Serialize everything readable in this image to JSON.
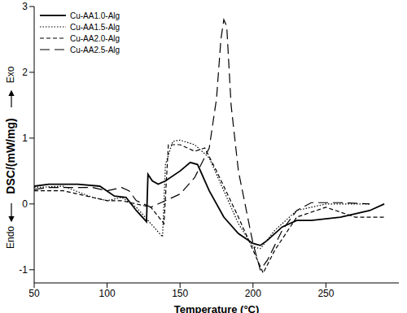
{
  "chart_data": {
    "type": "line",
    "xlabel": "Temperature (°C)",
    "ylabel": "DSC/(mW/mg)",
    "annotations": [
      "Exo",
      "Endo"
    ],
    "xlim": [
      50,
      300
    ],
    "ylim": [
      -1.2,
      3
    ],
    "xticks": [
      50,
      100,
      150,
      200,
      250
    ],
    "yticks": [
      -1,
      0,
      1,
      2,
      3
    ],
    "grid": false,
    "legend": "upper left",
    "series": [
      {
        "name": "Cu-AA1.0-Alg",
        "color": "#000000",
        "line_style": "solid",
        "x": [
          50,
          60,
          80,
          95,
          105,
          113,
          120,
          127,
          128,
          131,
          135,
          140,
          150,
          157,
          162,
          170,
          180,
          190,
          200,
          205,
          210,
          220,
          230,
          240,
          260,
          280,
          290
        ],
        "values": [
          0.27,
          0.3,
          0.3,
          0.27,
          0.12,
          0.1,
          -0.1,
          -0.27,
          0.45,
          0.35,
          0.3,
          0.35,
          0.5,
          0.63,
          0.6,
          0.2,
          -0.2,
          -0.45,
          -0.6,
          -0.63,
          -0.55,
          -0.35,
          -0.25,
          -0.25,
          -0.2,
          -0.1,
          0
        ]
      },
      {
        "name": "Cu-AA1.5-Alg",
        "color": "#000000",
        "line_style": "dotted",
        "x": [
          50,
          70,
          90,
          100,
          110,
          120,
          130,
          138,
          140,
          145,
          150,
          160,
          170,
          180,
          190,
          200,
          205,
          215,
          230,
          250,
          270,
          280
        ],
        "values": [
          0.25,
          0.27,
          0.1,
          0.05,
          0.1,
          -0.05,
          -0.3,
          -0.5,
          0.6,
          0.95,
          0.97,
          0.9,
          0.7,
          0.2,
          -0.3,
          -0.65,
          -0.68,
          -0.4,
          -0.1,
          0,
          0,
          0
        ]
      },
      {
        "name": "Cu-AA2.0-Alg",
        "color": "#000000",
        "line_style": "dashed",
        "x": [
          50,
          70,
          90,
          100,
          110,
          120,
          130,
          139,
          142,
          150,
          160,
          167,
          175,
          190,
          200,
          207,
          215,
          230,
          250,
          270,
          290
        ],
        "values": [
          0.2,
          0.2,
          0.1,
          0.05,
          0.05,
          0,
          -0.05,
          -0.3,
          0.9,
          0.9,
          0.8,
          0.85,
          0.5,
          -0.2,
          -0.7,
          -1.05,
          -0.7,
          -0.2,
          -0.05,
          -0.2,
          -0.2
        ]
      },
      {
        "name": "Cu-AA2.5-Alg",
        "color": "#000000",
        "line_style": "longdash",
        "x": [
          50,
          60,
          90,
          100,
          110,
          115,
          120,
          130,
          140,
          150,
          160,
          170,
          175,
          178,
          180,
          182,
          185,
          190,
          200,
          205,
          210,
          220,
          230,
          240,
          260,
          280
        ],
        "values": [
          0.22,
          0.25,
          0.25,
          0.2,
          0.25,
          0.2,
          0.05,
          -0.05,
          0.05,
          0.15,
          0.4,
          0.85,
          1.6,
          2.5,
          2.8,
          2.7,
          1.5,
          0.5,
          -0.6,
          -1.0,
          -0.85,
          -0.4,
          -0.1,
          0.02,
          0.02,
          0
        ]
      }
    ]
  }
}
